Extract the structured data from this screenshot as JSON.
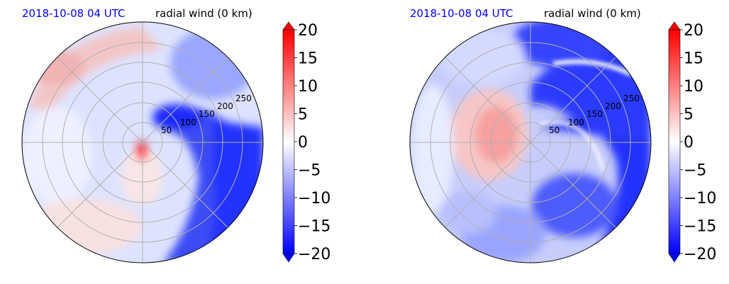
{
  "colors": {
    "date_text": "#0000ff",
    "positive_max": "#ff0000",
    "negative_max": "#0000ff",
    "zero": "#ffffff",
    "grid": "#b0b0b0"
  },
  "panels": [
    {
      "date_label": "2018-10-08 04 UTC",
      "variable_label": "radial wind (0 km)"
    },
    {
      "date_label": "2018-10-08 04 UTC",
      "variable_label": "radial wind (0 km)"
    }
  ],
  "chart_data": [
    {
      "type": "heatmap",
      "projection": "polar",
      "title": "radial wind (0 km)",
      "subtitle": "2018-10-08 04 UTC",
      "radial_ticks": [
        "50",
        "100",
        "150",
        "200",
        "250"
      ],
      "radial_tick_values": [
        50,
        100,
        150,
        200,
        250
      ],
      "radial_range": [
        0,
        300
      ],
      "angular_grid_deg": [
        0,
        45,
        90,
        135,
        180,
        225,
        270,
        315
      ],
      "grid": true,
      "colorbar": {
        "range": [
          -20,
          20
        ],
        "extend": "both",
        "ticks": [
          20,
          15,
          10,
          5,
          0,
          -5,
          -10,
          -15,
          -20
        ],
        "tick_labels": [
          "20",
          "15",
          "10",
          "5",
          "0",
          "−5",
          "−10",
          "−15",
          "−20"
        ],
        "colormap": "bwr"
      },
      "field_features": [
        {
          "sector": "east to south-east",
          "radius_km": [
            40,
            300
          ],
          "value": -16
        },
        {
          "sector": "south near center",
          "radius_km": [
            0,
            30
          ],
          "value": 14
        },
        {
          "sector": "north-west outer",
          "radius_km": [
            200,
            300
          ],
          "value": 6
        },
        {
          "sector": "south-west outer",
          "radius_km": [
            150,
            300
          ],
          "value": 4
        }
      ]
    },
    {
      "type": "heatmap",
      "projection": "polar",
      "title": "radial wind (0 km)",
      "subtitle": "2018-10-08 04 UTC",
      "radial_ticks": [
        "50",
        "100",
        "150",
        "200",
        "250"
      ],
      "radial_tick_values": [
        50,
        100,
        150,
        200,
        250
      ],
      "radial_range": [
        0,
        300
      ],
      "angular_grid_deg": [
        0,
        45,
        90,
        135,
        180,
        225,
        270,
        315
      ],
      "grid": true,
      "colorbar": {
        "range": [
          -20,
          20
        ],
        "extend": "both",
        "ticks": [
          20,
          15,
          10,
          5,
          0,
          -5,
          -10,
          -15,
          -20
        ],
        "tick_labels": [
          "20",
          "15",
          "10",
          "5",
          "0",
          "−5",
          "−10",
          "−15",
          "−20"
        ],
        "colormap": "bwr"
      },
      "field_features": [
        {
          "sector": "north-east to east",
          "radius_km": [
            30,
            300
          ],
          "value": -17
        },
        {
          "sector": "west near center",
          "radius_km": [
            0,
            120
          ],
          "value": 8
        },
        {
          "sector": "south-east outer",
          "radius_km": [
            100,
            300
          ],
          "value": -14
        },
        {
          "sector": "south",
          "radius_km": [
            150,
            300
          ],
          "value": -6
        }
      ]
    }
  ]
}
